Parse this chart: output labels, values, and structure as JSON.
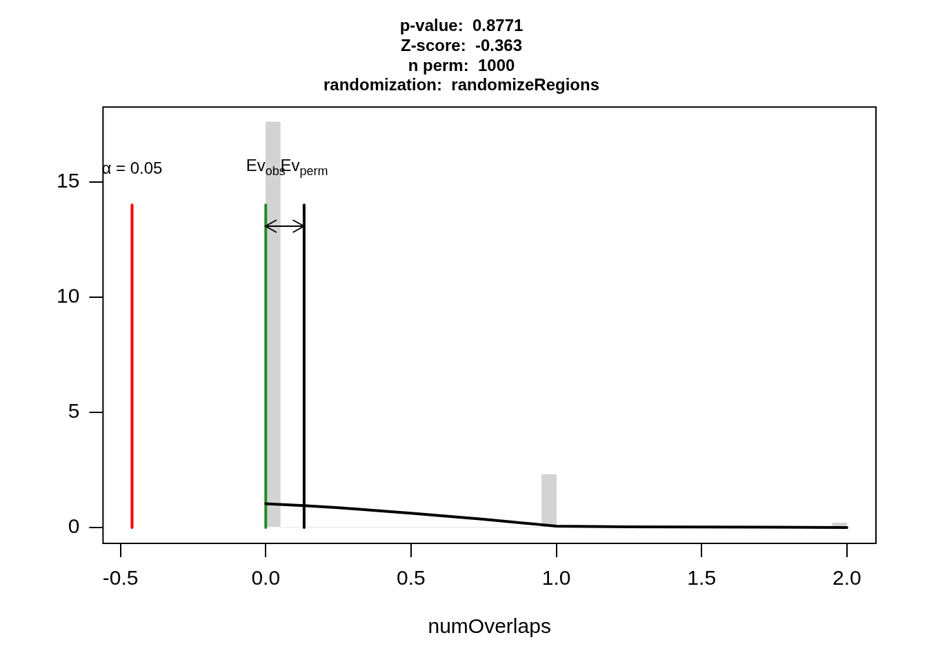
{
  "chart_data": {
    "type": "histogram",
    "title": "p-value:  0.8771\nZ-score:  -0.363\nn perm:  1000\nrandomization:  randomizeRegions",
    "xlabel": "numOverlaps",
    "bins": [
      0,
      0.05,
      0.1,
      0.15,
      0.2,
      0.25,
      0.3,
      0.35,
      0.4,
      0.45,
      0.5,
      0.55,
      0.6,
      0.65,
      0.7,
      0.75,
      0.8,
      0.85,
      0.9,
      0.95,
      1,
      1.05,
      1.1,
      1.15,
      1.2,
      1.25,
      1.3,
      1.35,
      1.4,
      1.45,
      1.5,
      1.55,
      1.6,
      1.65,
      1.7,
      1.75,
      1.8,
      1.85,
      1.9,
      1.95,
      2
    ],
    "values": [
      17.6,
      0,
      0,
      0,
      0,
      0,
      0,
      0,
      0,
      0,
      0,
      0,
      0,
      0,
      0,
      0,
      0,
      0,
      0,
      2.3,
      0,
      0,
      0,
      0,
      0,
      0,
      0,
      0,
      0,
      0,
      0,
      0,
      0,
      0,
      0,
      0,
      0,
      0,
      0,
      0.2
    ],
    "color": "#d3d3d3",
    "series": [
      {
        "type": "line",
        "color": "#000000",
        "x": [
          0,
          0.132,
          0.25,
          0.5,
          0.75,
          1,
          1.25,
          1.5,
          1.75,
          2
        ],
        "values": [
          1.03,
          0.95,
          0.86,
          0.62,
          0.36,
          0.06,
          0.03,
          0.02,
          0.01,
          0
        ]
      },
      {
        "type": "line",
        "color": "#ff0000",
        "x": [
          -0.46,
          -0.46
        ],
        "values": [
          0,
          14
        ]
      },
      {
        "type": "line",
        "color": "#228b22",
        "x": [
          0,
          0
        ],
        "values": [
          0,
          14
        ]
      },
      {
        "type": "line",
        "color": "#000000",
        "x": [
          0.132,
          0.132
        ],
        "values": [
          0,
          14
        ]
      }
    ],
    "annotations": [
      "α = 0.05",
      "Ev$_{obs}$",
      "Ev$_{perm}$"
    ],
    "xlim": [
      -0.56,
      2.1
    ],
    "ylim": [
      -0.69,
      18.25
    ],
    "xticks": [
      -0.5,
      {
        "value": 0,
        "label": "0.0"
      },
      0.5,
      {
        "value": 1,
        "label": "1.0"
      },
      1.5,
      {
        "value": 2,
        "label": "2.0"
      }
    ],
    "yticks": [
      0,
      5,
      10,
      15
    ],
    "grid": false,
    "legend": false
  }
}
